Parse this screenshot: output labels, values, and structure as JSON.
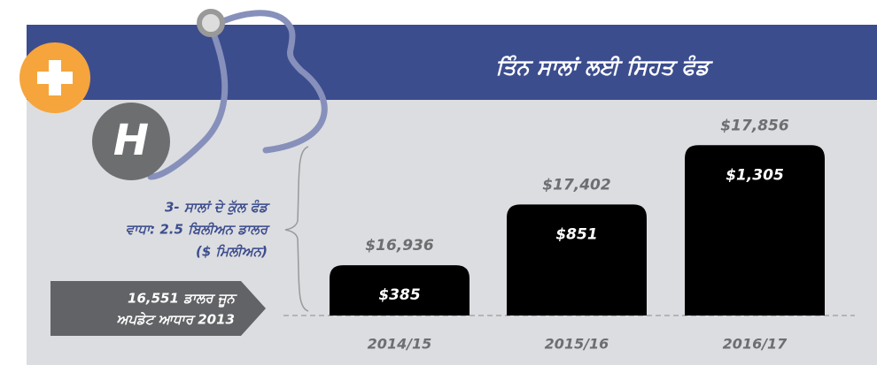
{
  "chart_data": {
    "type": "bar",
    "title": "ਤਿੰਨ ਸਾਲਾਂ ਲਈ ਸਿਹਤ ਫੰਡ",
    "categories": [
      "2014/15",
      "2015/16",
      "2016/17"
    ],
    "values": [
      16936,
      17402,
      17856
    ],
    "value_labels": [
      "$16,936",
      "$17,402",
      "$17,856"
    ],
    "increases": {
      "values": [
        385,
        851,
        1305
      ],
      "value_labels": [
        "$385",
        "$851",
        "$1,305"
      ]
    },
    "color": "#000000",
    "ylim": [
      16551,
      18000
    ],
    "note": [
      "3- ਸਾਲਾਂ ਦੇ ਕੁੱਲ ਫੰਡ",
      "ਵਾਧਾ: 2.5 ਬਿਲੀਅਨ ਡਾਲਰ",
      "($ ਮਿਲੀਅਨ)"
    ],
    "baseline_note": [
      "16,551 ਡਾਲਰ ਜੂਨ",
      "ਅਪਡੇਟ ਆਧਾਰ 2013"
    ],
    "icon_letter": "H"
  }
}
